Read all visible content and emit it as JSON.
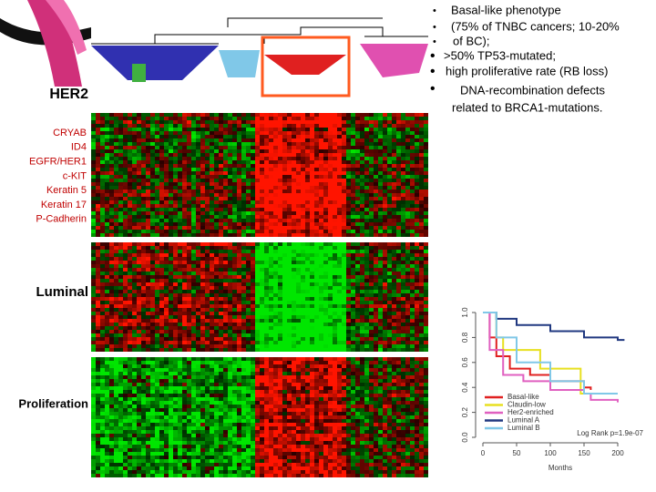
{
  "bullets": [
    "Basal-like phenotype",
    "(75% of TNBC cancers; 10-20%",
    "of BC);",
    ">50% TP53-mutated;",
    "high proliferative rate (RB loss)",
    "DNA-recombination defects",
    "related to BRCA1-mutations."
  ],
  "labels": {
    "her2": "HER2",
    "genes": [
      "CRYAB",
      "ID4",
      "EGFR/HER1",
      "c-KIT",
      "Keratin 5",
      "Keratin 17",
      "P-Cadherin"
    ],
    "luminal": "Luminal",
    "proliferation": "Proliferation"
  },
  "chart_data": {
    "type": "line",
    "x_label": "Months",
    "annotation": "Log Rank p=1.9e-07",
    "xlim": [
      0,
      215
    ],
    "ylim": [
      0,
      1
    ],
    "xticks": [
      0,
      50,
      100,
      150,
      200
    ],
    "yticks": [
      {
        "value": 0,
        "label": "0.0"
      },
      {
        "value": 0.2,
        "label": "0.2"
      },
      {
        "value": 0.4,
        "label": "0.4"
      },
      {
        "value": 0.6,
        "label": "0.6"
      },
      {
        "value": 0.8,
        "label": "0.8"
      },
      {
        "value": 1,
        "label": "1.0"
      }
    ],
    "series": [
      {
        "name": "Basal-like",
        "color": "#e02020",
        "x": [
          0,
          10,
          20,
          40,
          70,
          100,
          150,
          160
        ],
        "values": [
          1,
          0.8,
          0.65,
          0.55,
          0.5,
          0.45,
          0.4,
          0.38
        ]
      },
      {
        "name": "Claudin-low",
        "color": "#e8e020",
        "x": [
          0,
          20,
          30,
          80,
          85,
          140,
          145,
          150
        ],
        "values": [
          1,
          0.8,
          0.7,
          0.7,
          0.55,
          0.55,
          0.35,
          0.35
        ]
      },
      {
        "name": "Her2-enriched",
        "color": "#e060c0",
        "x": [
          0,
          10,
          30,
          60,
          100,
          150,
          160,
          200
        ],
        "values": [
          1,
          0.7,
          0.5,
          0.45,
          0.38,
          0.35,
          0.3,
          0.28
        ]
      },
      {
        "name": "Luminal A",
        "color": "#203880",
        "x": [
          0,
          20,
          50,
          100,
          150,
          200,
          210
        ],
        "values": [
          1,
          0.95,
          0.9,
          0.85,
          0.8,
          0.78,
          0.78
        ]
      },
      {
        "name": "Luminal B",
        "color": "#80c8e8",
        "x": [
          0,
          20,
          50,
          100,
          150,
          200
        ],
        "values": [
          1,
          0.8,
          0.6,
          0.45,
          0.35,
          0.35
        ]
      }
    ]
  }
}
